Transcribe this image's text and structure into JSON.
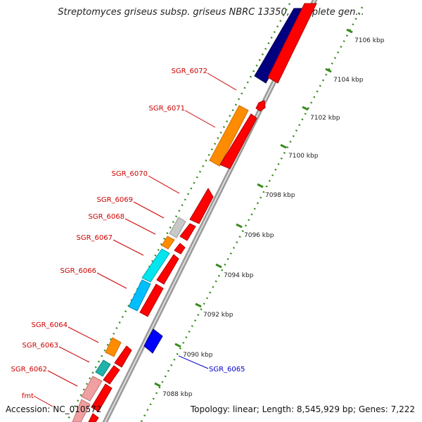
{
  "title": "Streptomyces griseus subsp. griseus NBRC 13350, complete gen...",
  "footer": {
    "accession": "Accession: NC_010572",
    "topology": "Topology: linear; Length: 8,545,929 bp; Genes: 7,222"
  },
  "colors": {
    "gene_label": "#cc0000",
    "selected_label": "#0000cc",
    "forward_gene": "#ff0000",
    "reverse_gene": "#0000ff",
    "axis": "#9a9a9a",
    "ruler": "#3a8a1e",
    "band_navy": "#000080",
    "band_orange": "#ff8c00",
    "band_cyan": "#00e5ee",
    "band_lightblue": "#00bfff",
    "band_gray": "#c8c8c8",
    "band_teal": "#20b2aa",
    "band_pink": "#f0a0a0"
  },
  "ruler_ticks": [
    "7106 kbp",
    "7104 kbp",
    "7102 kbp",
    "7100 kbp",
    "7098 kbp",
    "7096 kbp",
    "7094 kbp",
    "7092 kbp",
    "7090 kbp",
    "7088 kbp"
  ],
  "gene_labels": [
    "SGR_6072",
    "SGR_6071",
    "SGR_6070",
    "SGR_6069",
    "SGR_6068",
    "SGR_6067",
    "SGR_6066",
    "SGR_6064",
    "SGR_6063",
    "SGR_6062",
    "fmt"
  ],
  "selected_gene": "SGR_6065"
}
